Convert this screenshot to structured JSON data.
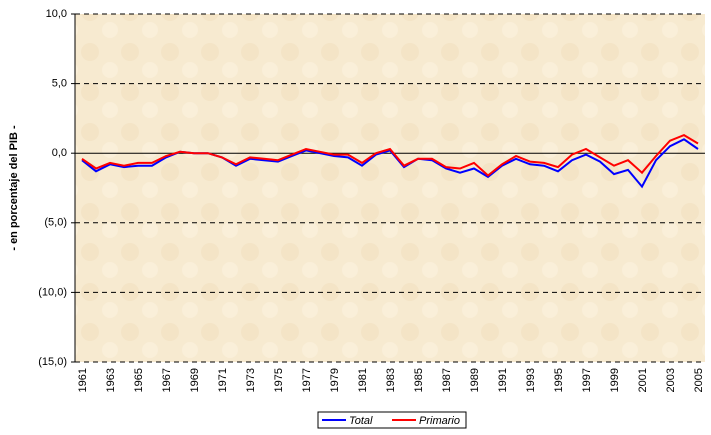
{
  "chart_data": {
    "type": "line",
    "ylabel": "- en porcentaje del PIB -",
    "categories": [
      "1961",
      null,
      "1963",
      null,
      "1965",
      null,
      "1967",
      null,
      "1969",
      null,
      "1971",
      null,
      "1973",
      null,
      "1975",
      null,
      "1977",
      null,
      "1979",
      null,
      "1981",
      null,
      "1983",
      null,
      "1985",
      null,
      "1987",
      null,
      "1989",
      null,
      "1991",
      null,
      "1993",
      null,
      "1995",
      null,
      "1997",
      null,
      "1999",
      null,
      "2001",
      null,
      "2003",
      null,
      "2005"
    ],
    "series": [
      {
        "name": "Total",
        "color": "#0000ff",
        "values": [
          -0.5,
          -1.3,
          -0.8,
          -1.0,
          -0.9,
          -0.9,
          -0.3,
          0.1,
          0.0,
          0.0,
          -0.3,
          -0.9,
          -0.4,
          -0.5,
          -0.6,
          -0.2,
          0.2,
          0.0,
          -0.2,
          -0.3,
          -0.9,
          -0.1,
          0.2,
          -1.0,
          -0.4,
          -0.5,
          -1.1,
          -1.4,
          -1.1,
          -1.7,
          -0.9,
          -0.4,
          -0.8,
          -0.9,
          -1.3,
          -0.5,
          -0.1,
          -0.6,
          -1.5,
          -1.2,
          -2.4,
          -0.5,
          0.5,
          1.0,
          0.3
        ]
      },
      {
        "name": "Primario",
        "color": "#ff0000",
        "values": [
          -0.4,
          -1.1,
          -0.7,
          -0.9,
          -0.7,
          -0.7,
          -0.2,
          0.1,
          0.0,
          0.0,
          -0.3,
          -0.8,
          -0.3,
          -0.4,
          -0.5,
          -0.1,
          0.3,
          0.1,
          -0.1,
          -0.1,
          -0.7,
          0.0,
          0.3,
          -0.9,
          -0.4,
          -0.4,
          -1.0,
          -1.1,
          -0.7,
          -1.6,
          -0.8,
          -0.2,
          -0.6,
          -0.7,
          -1.0,
          -0.1,
          0.3,
          -0.3,
          -0.9,
          -0.5,
          -1.4,
          -0.2,
          0.9,
          1.3,
          0.7
        ]
      }
    ],
    "ylim": [
      -15,
      10
    ],
    "yticks": [
      {
        "value": 10,
        "label": "10,0"
      },
      {
        "value": 5,
        "label": "5,0"
      },
      {
        "value": 0,
        "label": "0,0"
      },
      {
        "value": -5,
        "label": "(5,0)"
      },
      {
        "value": -10,
        "label": "(10,0)"
      },
      {
        "value": -15,
        "label": "(15,0)"
      }
    ],
    "grid": true
  }
}
